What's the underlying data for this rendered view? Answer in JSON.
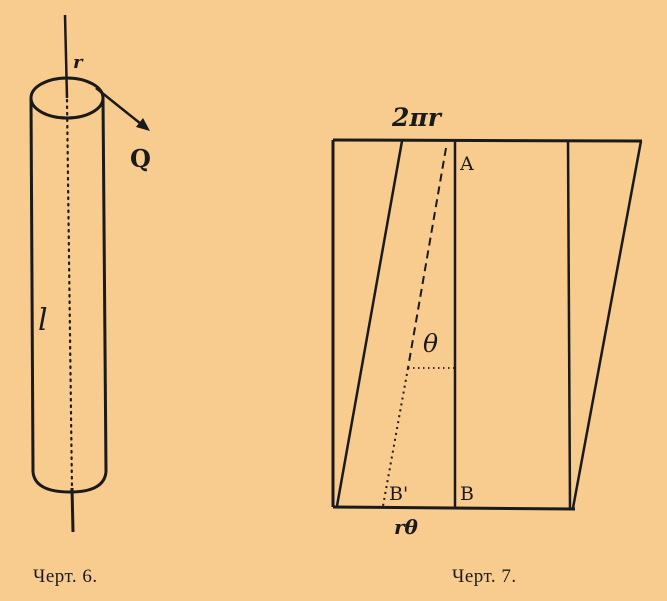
{
  "figure6": {
    "caption": "Черт. 6.",
    "radius_label": "r",
    "force_label": "Q",
    "length_label": "l"
  },
  "figure7": {
    "caption": "Черт. 7.",
    "top_label": "2πr",
    "point_a": "A",
    "point_b": "B",
    "point_b_prime": "B'",
    "angle_label": "θ",
    "bottom_label": "rθ"
  }
}
